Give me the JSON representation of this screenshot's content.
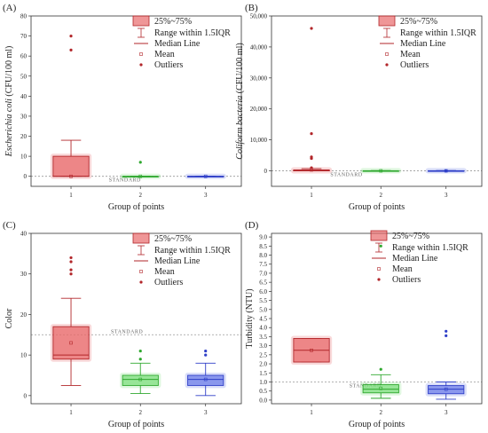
{
  "legend": {
    "box": "25%~75%",
    "whisker": "Range within 1.5IQR",
    "median": "Median Line",
    "mean": "Mean",
    "outliers": "Outliers"
  },
  "colors": {
    "group1": "#e8696b",
    "group2": "#7fdf7f",
    "group3": "#6f7fe8",
    "standard_line": "#999999"
  },
  "chart_data": [
    {
      "type": "box",
      "panel_label": "(A)",
      "xlabel": "Group of points",
      "ylabel_italic": "Escherichia coli",
      "ylabel_rest": " (CFU/100 ml)",
      "ylim": [
        -5,
        80
      ],
      "yticks": [
        0,
        10,
        20,
        30,
        40,
        50,
        60,
        70,
        80
      ],
      "ytick_labels": [
        "0",
        "10",
        "20",
        "30",
        "40",
        "50",
        "60",
        "70",
        "80"
      ],
      "categories": [
        "1",
        "2",
        "3"
      ],
      "standard": 0,
      "standard_label": "STANDARD",
      "boxes": [
        {
          "q1": 0,
          "median": 0,
          "q3": 10,
          "wlo": 0,
          "whi": 18,
          "mean": 0,
          "outliers": [
            63,
            70
          ]
        },
        {
          "q1": 0,
          "median": 0,
          "q3": 0,
          "wlo": 0,
          "whi": 0,
          "mean": 0,
          "outliers": [
            7
          ]
        },
        {
          "q1": 0,
          "median": 0,
          "q3": 0,
          "wlo": 0,
          "whi": 0,
          "mean": 0,
          "outliers": []
        }
      ]
    },
    {
      "type": "box",
      "panel_label": "(B)",
      "xlabel": "Group of points",
      "ylabel_italic": "Coliform bacteria",
      "ylabel_rest": " (CFU/100 ml)",
      "ylim": [
        -5000,
        50000
      ],
      "yticks": [
        0,
        10000,
        20000,
        30000,
        40000,
        50000
      ],
      "ytick_labels": [
        "0",
        "10,000",
        "20,000",
        "30,000",
        "40,000",
        "50,000"
      ],
      "categories": [
        "1",
        "2",
        "3"
      ],
      "standard": 0,
      "standard_label": "STANDARD",
      "boxes": [
        {
          "q1": 0,
          "median": 0,
          "q3": 300,
          "wlo": 0,
          "whi": 700,
          "mean": 300,
          "outliers": [
            1000,
            4000,
            4500,
            12000,
            46000
          ]
        },
        {
          "q1": 0,
          "median": 0,
          "q3": 50,
          "wlo": 0,
          "whi": 100,
          "mean": 0,
          "outliers": []
        },
        {
          "q1": 0,
          "median": 0,
          "q3": 50,
          "wlo": 0,
          "whi": 100,
          "mean": 0,
          "outliers": [
            0
          ]
        }
      ]
    },
    {
      "type": "box",
      "panel_label": "(C)",
      "xlabel": "Group of points",
      "ylabel_italic": "",
      "ylabel_rest": "Color",
      "ylim": [
        -2,
        40
      ],
      "yticks": [
        0,
        10,
        20,
        30,
        40
      ],
      "ytick_labels": [
        "0",
        "10",
        "20",
        "30",
        "40"
      ],
      "categories": [
        "1",
        "2",
        "3"
      ],
      "standard": 15,
      "standard_label": "STANDARD",
      "boxes": [
        {
          "q1": 9,
          "median": 10,
          "q3": 17,
          "wlo": 2.5,
          "whi": 24,
          "mean": 13,
          "outliers": [
            30,
            31,
            33,
            34
          ]
        },
        {
          "q1": 2.5,
          "median": 4,
          "q3": 5,
          "wlo": 0.5,
          "whi": 8,
          "mean": 4,
          "outliers": [
            9,
            11
          ]
        },
        {
          "q1": 2.5,
          "median": 4,
          "q3": 5,
          "wlo": 0,
          "whi": 8,
          "mean": 4,
          "outliers": [
            10,
            11
          ]
        }
      ]
    },
    {
      "type": "box",
      "panel_label": "(D)",
      "xlabel": "Group of points",
      "ylabel_italic": "",
      "ylabel_rest": "Turbidity (NTU)",
      "ylim": [
        -0.2,
        9.2
      ],
      "yticks": [
        0,
        0.5,
        1,
        1.5,
        2,
        2.5,
        3,
        3.5,
        4,
        4.5,
        5,
        5.5,
        6,
        6.5,
        7,
        7.5,
        8,
        8.5,
        9
      ],
      "ytick_labels": [
        "0.0",
        "0.5",
        "1.0",
        "1.5",
        "2.0",
        "2.5",
        "3.0",
        "3.5",
        "4.0",
        "4.5",
        "5.0",
        "5.5",
        "6.0",
        "6.5",
        "7.0",
        "7.5",
        "8.0",
        "8.5",
        "9.0"
      ],
      "categories": [
        "1",
        "2",
        "3"
      ],
      "standard": 1,
      "standard_label": "STANDARD",
      "boxes": [
        {
          "q1": 2.1,
          "median": 2.75,
          "q3": 3.4,
          "wlo": 2.1,
          "whi": 3.4,
          "mean": 2.75,
          "outliers": []
        },
        {
          "q1": 0.4,
          "median": 0.6,
          "q3": 0.85,
          "wlo": 0.1,
          "whi": 1.4,
          "mean": 0.65,
          "outliers": [
            1.7,
            8.5
          ]
        },
        {
          "q1": 0.35,
          "median": 0.6,
          "q3": 0.8,
          "wlo": 0.05,
          "whi": 1.0,
          "mean": 0.6,
          "outliers": [
            3.55,
            3.8
          ]
        }
      ]
    }
  ]
}
